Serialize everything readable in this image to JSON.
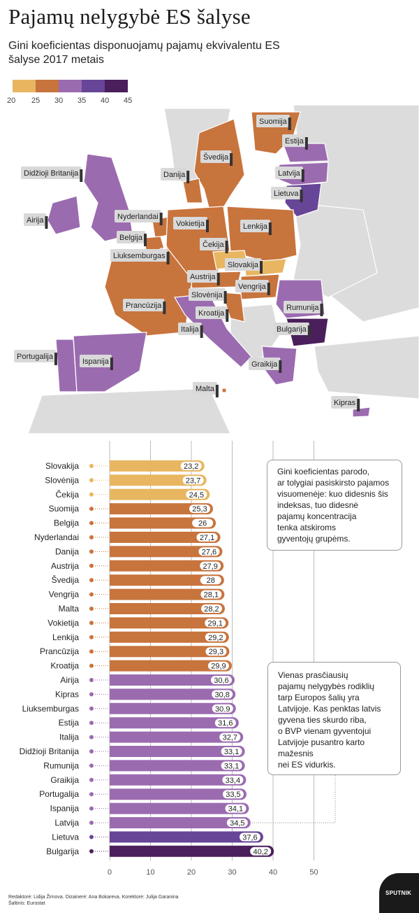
{
  "title": "Pajamų nelygybė ES šalyse",
  "subtitle": "Gini koeficientas disponuojamų pajamų ekvivalentu ES šalyse 2017 metais",
  "legend": {
    "colors": [
      "#e8b661",
      "#c8743d",
      "#9b6bb0",
      "#674597",
      "#4a1f5c"
    ],
    "ticks": [
      "20",
      "25",
      "30",
      "35",
      "40",
      "45"
    ]
  },
  "colors": {
    "band_20_25": "#e8b661",
    "band_25_30": "#c8743d",
    "band_30_35": "#9b6bb0",
    "band_35_40": "#674597",
    "band_40_45": "#4a1f5c",
    "non_eu": "#dcdcdc",
    "sea": "#ffffff"
  },
  "map_labels": [
    "Suomija",
    "Estija",
    "Švedija",
    "Latvija",
    "Danija",
    "Lietuva",
    "Didžioji Britanija",
    "Airija",
    "Nyderlandai",
    "Vokietija",
    "Lenkija",
    "Belgija",
    "Čekija",
    "Liuksemburgas",
    "Slovakija",
    "Austrija",
    "Vengrija",
    "Prancūzija",
    "Slovėnija",
    "Kroatija",
    "Rumunija",
    "Italija",
    "Bulgarija",
    "Portugalija",
    "Ispanija",
    "Graikija",
    "Malta",
    "Kipras"
  ],
  "chart_data": {
    "type": "bar",
    "orientation": "horizontal",
    "categories": [
      "Slovakija",
      "Slovėnija",
      "Čekija",
      "Suomija",
      "Belgija",
      "Nyderlandai",
      "Danija",
      "Austrija",
      "Švedija",
      "Vengrija",
      "Malta",
      "Vokietija",
      "Lenkija",
      "Prancūzija",
      "Kroatija",
      "Airija",
      "Kipras",
      "Liuksemburgas",
      "Estija",
      "Italija",
      "Didžioji Britanija",
      "Rumunija",
      "Graikija",
      "Portugalija",
      "Ispanija",
      "Latvija",
      "Lietuva",
      "Bulgarija"
    ],
    "values": [
      23.2,
      23.7,
      24.5,
      25.3,
      26,
      27.1,
      27.6,
      27.9,
      28,
      28.1,
      28.2,
      29.1,
      29.2,
      29.3,
      29.9,
      30.6,
      30.8,
      30.9,
      31.6,
      32.7,
      33.1,
      33.1,
      33.4,
      33.5,
      34.1,
      34.5,
      37.6,
      40.2
    ],
    "value_labels": [
      "23,2",
      "23,7",
      "24,5",
      "25,3",
      "26",
      "27,1",
      "27,6",
      "27,9",
      "28",
      "28,1",
      "28,2",
      "29,1",
      "29,2",
      "29,3",
      "29,9",
      "30,6",
      "30,8",
      "30.9",
      "31,6",
      "32,7",
      "33,1",
      "33,1",
      "33,4",
      "33,5",
      "34,1",
      "34,5",
      "37,6",
      "40,2"
    ],
    "x_ticks": [
      "0",
      "10",
      "20",
      "30",
      "40",
      "50"
    ],
    "xlim": [
      0,
      50
    ],
    "grid": true,
    "color_bands": [
      [
        20,
        25,
        "#e8b661"
      ],
      [
        25,
        30,
        "#c8743d"
      ],
      [
        30,
        35,
        "#9b6bb0"
      ],
      [
        35,
        40,
        "#674597"
      ],
      [
        40,
        45,
        "#4a1f5c"
      ]
    ]
  },
  "notes": {
    "note1": "Gini koeficientas parodo,\nar tolygiai pasiskirsto pajamos\nvisuomenėje: kuo didesnis šis\nindeksas, tuo didesnė\npajamų koncentracija\ntenka atskiroms\ngyventojų grupėms.",
    "note2": "Vienas prasčiausių\npajamų nelygybės rodiklių\ntarp Europos šalių yra\nLatvijoje. Kas penktas latvis\ngyvena ties skurdo riba,\no BVP vienam gyventojui\nLatvijoje pusantro karto\nmažesnis\nnei ES vidurkis."
  },
  "footer": {
    "credits": "Redaktorė: Lidija Žirnova. Dizainerė: Ana Bokareva. Korektorė: Julija Garanina",
    "source": "Šaltinis: Eurostat"
  },
  "logo": {
    "text": "SPUTNIK"
  }
}
